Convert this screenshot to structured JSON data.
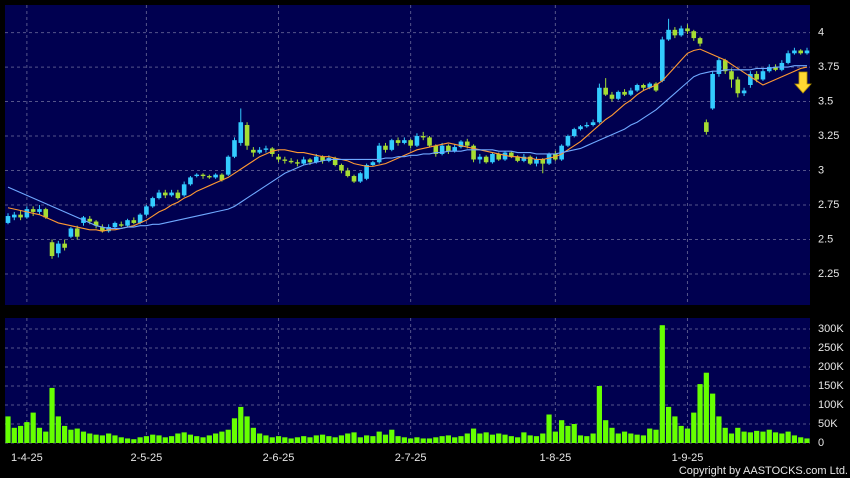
{
  "chart_data": {
    "type": "candlestick",
    "categories": [
      null,
      null,
      null,
      "1-4-25",
      null,
      null,
      null,
      null,
      null,
      null,
      null,
      null,
      null,
      null,
      null,
      null,
      null,
      null,
      null,
      null,
      null,
      null,
      "2-5-25",
      null,
      null,
      null,
      null,
      null,
      null,
      null,
      null,
      null,
      null,
      null,
      null,
      null,
      null,
      null,
      null,
      null,
      null,
      null,
      null,
      "2-6-25",
      null,
      null,
      null,
      null,
      null,
      null,
      null,
      null,
      null,
      null,
      null,
      null,
      null,
      null,
      null,
      null,
      null,
      null,
      null,
      null,
      "2-7-25",
      null,
      null,
      null,
      null,
      null,
      null,
      null,
      null,
      null,
      null,
      null,
      null,
      null,
      null,
      null,
      null,
      null,
      null,
      null,
      null,
      null,
      null,
      "1-8-25",
      null,
      null,
      null,
      null,
      null,
      null,
      null,
      null,
      null,
      null,
      null,
      null,
      null,
      null,
      null,
      null,
      null,
      null,
      null,
      null,
      "1-9-25",
      null,
      null,
      null,
      null,
      null,
      null,
      null,
      null,
      null,
      null,
      null,
      null,
      null,
      null,
      null,
      null,
      null,
      null,
      null
    ],
    "open": [
      2.62,
      2.66,
      2.68,
      2.66,
      2.72,
      2.7,
      2.72,
      2.48,
      2.4,
      2.47,
      2.52,
      2.58,
      2.62,
      2.65,
      2.63,
      2.59,
      2.56,
      2.59,
      2.61,
      2.6,
      2.64,
      2.62,
      2.68,
      2.74,
      2.8,
      2.84,
      2.82,
      2.84,
      2.82,
      2.9,
      2.96,
      2.97,
      2.96,
      2.95,
      2.97,
      2.97,
      3.1,
      3.2,
      3.33,
      3.15,
      3.13,
      3.15,
      3.16,
      3.1,
      3.08,
      3.07,
      3.06,
      3.05,
      3.08,
      3.06,
      3.1,
      3.07,
      3.09,
      3.04,
      3.0,
      2.96,
      2.92,
      2.94,
      3.04,
      3.06,
      3.18,
      3.15,
      3.22,
      3.2,
      3.22,
      3.18,
      3.25,
      3.24,
      3.18,
      3.12,
      3.18,
      3.14,
      3.17,
      3.21,
      3.18,
      3.08,
      3.1,
      3.06,
      3.12,
      3.08,
      3.13,
      3.1,
      3.07,
      3.1,
      3.05,
      3.08,
      3.05,
      3.12,
      3.08,
      3.18,
      3.25,
      3.3,
      3.32,
      3.33,
      3.35,
      3.6,
      3.55,
      3.52,
      3.57,
      3.55,
      3.58,
      3.62,
      3.6,
      3.63,
      3.65,
      3.95,
      4.02,
      3.98,
      4.03,
      4.01,
      3.96,
      3.35,
      3.45,
      3.7,
      3.8,
      3.72,
      3.66,
      3.56,
      3.62,
      3.7,
      3.66,
      3.72,
      3.75,
      3.73,
      3.78,
      3.85,
      3.87,
      3.85
    ],
    "high": [
      2.69,
      2.7,
      2.71,
      2.74,
      2.74,
      2.75,
      2.73,
      2.5,
      2.49,
      2.5,
      2.59,
      2.6,
      2.67,
      2.67,
      2.64,
      2.61,
      2.61,
      2.63,
      2.63,
      2.65,
      2.66,
      2.69,
      2.75,
      2.81,
      2.86,
      2.86,
      2.86,
      2.86,
      2.92,
      2.96,
      2.98,
      2.98,
      2.97,
      2.98,
      2.98,
      3.11,
      3.24,
      3.45,
      3.35,
      3.17,
      3.17,
      3.18,
      3.17,
      3.12,
      3.1,
      3.09,
      3.08,
      3.1,
      3.09,
      3.12,
      3.11,
      3.11,
      3.1,
      3.05,
      3.02,
      2.97,
      2.99,
      3.05,
      3.07,
      3.2,
      3.2,
      3.23,
      3.24,
      3.24,
      3.23,
      3.27,
      3.28,
      3.25,
      3.19,
      3.2,
      3.19,
      3.19,
      3.22,
      3.23,
      3.19,
      3.12,
      3.11,
      3.13,
      3.13,
      3.14,
      3.14,
      3.11,
      3.12,
      3.11,
      3.1,
      3.09,
      3.13,
      3.14,
      3.19,
      3.26,
      3.31,
      3.33,
      3.35,
      3.37,
      3.63,
      3.67,
      3.57,
      3.58,
      3.59,
      3.6,
      3.63,
      3.63,
      3.64,
      3.64,
      3.97,
      4.1,
      4.04,
      4.05,
      4.06,
      4.02,
      3.97,
      3.37,
      3.72,
      3.82,
      3.81,
      3.74,
      3.68,
      3.6,
      3.72,
      3.72,
      3.74,
      3.77,
      3.77,
      3.8,
      3.87,
      3.89,
      3.88,
      3.89
    ],
    "low": [
      2.61,
      2.64,
      2.64,
      2.65,
      2.67,
      2.68,
      2.65,
      2.36,
      2.37,
      2.42,
      2.51,
      2.5,
      2.6,
      2.61,
      2.58,
      2.55,
      2.55,
      2.58,
      2.59,
      2.59,
      2.61,
      2.61,
      2.67,
      2.73,
      2.79,
      2.8,
      2.81,
      2.79,
      2.81,
      2.89,
      2.95,
      2.94,
      2.94,
      2.94,
      2.92,
      2.96,
      3.09,
      3.18,
      3.15,
      3.1,
      3.12,
      3.13,
      3.1,
      3.06,
      3.05,
      3.05,
      3.03,
      3.04,
      3.04,
      3.05,
      3.05,
      3.06,
      3.03,
      2.98,
      2.95,
      2.91,
      2.91,
      2.93,
      3.03,
      3.05,
      3.13,
      3.14,
      3.18,
      3.19,
      3.16,
      3.17,
      3.22,
      3.17,
      3.1,
      3.11,
      3.12,
      3.13,
      3.16,
      3.16,
      3.06,
      3.05,
      3.05,
      3.05,
      3.07,
      3.07,
      3.09,
      3.06,
      3.06,
      3.04,
      3.03,
      2.98,
      3.04,
      3.07,
      3.07,
      3.17,
      3.24,
      3.29,
      3.31,
      3.32,
      3.34,
      3.54,
      3.5,
      3.51,
      3.54,
      3.54,
      3.57,
      3.58,
      3.59,
      3.57,
      3.64,
      3.94,
      3.96,
      3.97,
      3.99,
      3.94,
      3.9,
      3.26,
      3.44,
      3.68,
      3.7,
      3.6,
      3.53,
      3.54,
      3.6,
      3.64,
      3.65,
      3.71,
      3.72,
      3.72,
      3.77,
      3.84,
      3.84,
      3.84
    ],
    "close": [
      2.67,
      2.68,
      2.66,
      2.72,
      2.7,
      2.72,
      2.66,
      2.38,
      2.47,
      2.44,
      2.58,
      2.52,
      2.66,
      2.63,
      2.6,
      2.56,
      2.59,
      2.62,
      2.6,
      2.64,
      2.62,
      2.68,
      2.74,
      2.8,
      2.84,
      2.82,
      2.84,
      2.8,
      2.9,
      2.95,
      2.97,
      2.96,
      2.95,
      2.97,
      2.93,
      3.1,
      3.22,
      3.35,
      3.18,
      3.13,
      3.15,
      3.16,
      3.12,
      3.08,
      3.07,
      3.06,
      3.05,
      3.08,
      3.06,
      3.1,
      3.07,
      3.09,
      3.04,
      3.0,
      2.96,
      2.92,
      2.98,
      3.04,
      3.06,
      3.18,
      3.15,
      3.22,
      3.2,
      3.22,
      3.18,
      3.25,
      3.24,
      3.18,
      3.12,
      3.18,
      3.14,
      3.17,
      3.21,
      3.18,
      3.08,
      3.1,
      3.06,
      3.12,
      3.08,
      3.13,
      3.1,
      3.07,
      3.1,
      3.05,
      3.08,
      3.05,
      3.12,
      3.08,
      3.18,
      3.25,
      3.3,
      3.32,
      3.33,
      3.35,
      3.6,
      3.55,
      3.52,
      3.57,
      3.55,
      3.58,
      3.62,
      3.6,
      3.63,
      3.58,
      3.95,
      4.02,
      3.98,
      4.03,
      4.01,
      3.96,
      3.92,
      3.28,
      3.7,
      3.8,
      3.72,
      3.66,
      3.56,
      3.58,
      3.7,
      3.66,
      3.72,
      3.75,
      3.73,
      3.78,
      3.85,
      3.87,
      3.85,
      3.87
    ],
    "up_color": "#33ccff",
    "down_color": "#a6dd33",
    "series": [
      {
        "color": "#ff9933",
        "values": [
          2.73,
          2.72,
          2.71,
          2.7,
          2.69,
          2.68,
          2.66,
          2.64,
          2.62,
          2.61,
          2.6,
          2.59,
          2.58,
          2.57,
          2.57,
          2.56,
          2.57,
          2.57,
          2.58,
          2.59,
          2.6,
          2.62,
          2.64,
          2.67,
          2.7,
          2.72,
          2.75,
          2.77,
          2.8,
          2.82,
          2.85,
          2.87,
          2.89,
          2.91,
          2.93,
          2.95,
          2.98,
          3.01,
          3.04,
          3.07,
          3.1,
          3.12,
          3.14,
          3.15,
          3.15,
          3.14,
          3.13,
          3.13,
          3.12,
          3.11,
          3.1,
          3.1,
          3.09,
          3.08,
          3.07,
          3.05,
          3.04,
          3.03,
          3.03,
          3.04,
          3.05,
          3.07,
          3.09,
          3.11,
          3.13,
          3.15,
          3.16,
          3.17,
          3.18,
          3.19,
          3.2,
          3.19,
          3.18,
          3.17,
          3.16,
          3.15,
          3.14,
          3.13,
          3.12,
          3.11,
          3.1,
          3.1,
          3.09,
          3.09,
          3.08,
          3.08,
          3.09,
          3.1,
          3.12,
          3.15,
          3.18,
          3.21,
          3.25,
          3.29,
          3.33,
          3.37,
          3.4,
          3.44,
          3.48,
          3.51,
          3.55,
          3.58,
          3.6,
          3.62,
          3.65,
          3.7,
          3.75,
          3.8,
          3.85,
          3.87,
          3.88,
          3.86,
          3.84,
          3.82,
          3.8,
          3.77,
          3.74,
          3.71,
          3.68,
          3.65,
          3.62,
          3.64,
          3.66,
          3.68,
          3.7,
          3.72,
          3.74,
          3.75
        ]
      },
      {
        "color": "#6fa8ff",
        "values": [
          2.88,
          2.86,
          2.84,
          2.82,
          2.8,
          2.78,
          2.76,
          2.74,
          2.72,
          2.7,
          2.68,
          2.66,
          2.64,
          2.62,
          2.6,
          2.59,
          2.58,
          2.58,
          2.58,
          2.59,
          2.59,
          2.6,
          2.6,
          2.61,
          2.61,
          2.62,
          2.63,
          2.64,
          2.65,
          2.66,
          2.67,
          2.68,
          2.69,
          2.7,
          2.71,
          2.72,
          2.74,
          2.77,
          2.8,
          2.83,
          2.86,
          2.89,
          2.92,
          2.95,
          2.98,
          3.0,
          3.02,
          3.04,
          3.05,
          3.06,
          3.07,
          3.08,
          3.08,
          3.08,
          3.08,
          3.08,
          3.08,
          3.08,
          3.08,
          3.08,
          3.09,
          3.09,
          3.1,
          3.1,
          3.11,
          3.11,
          3.12,
          3.12,
          3.13,
          3.13,
          3.14,
          3.14,
          3.14,
          3.15,
          3.15,
          3.15,
          3.15,
          3.15,
          3.14,
          3.14,
          3.14,
          3.13,
          3.13,
          3.13,
          3.12,
          3.12,
          3.12,
          3.12,
          3.13,
          3.14,
          3.15,
          3.16,
          3.18,
          3.2,
          3.22,
          3.24,
          3.26,
          3.28,
          3.3,
          3.33,
          3.35,
          3.38,
          3.41,
          3.44,
          3.48,
          3.52,
          3.56,
          3.6,
          3.64,
          3.68,
          3.7,
          3.71,
          3.72,
          3.72,
          3.73,
          3.73,
          3.73,
          3.73,
          3.73,
          3.74,
          3.74,
          3.74,
          3.75,
          3.75,
          3.75,
          3.76,
          3.76,
          3.76
        ]
      }
    ],
    "ylim": [
      2.025,
      4.2
    ],
    "yticks": [
      2.25,
      2.5,
      2.75,
      3,
      3.25,
      3.5,
      3.75,
      4
    ],
    "grid": true,
    "volume": {
      "color": "#66ff00",
      "values": [
        70000,
        40000,
        45000,
        55000,
        80000,
        40000,
        30000,
        145000,
        70000,
        45000,
        35000,
        38000,
        30000,
        25000,
        22000,
        20000,
        25000,
        20000,
        15000,
        12000,
        10000,
        15000,
        18000,
        22000,
        20000,
        15000,
        18000,
        25000,
        28000,
        22000,
        18000,
        15000,
        20000,
        25000,
        30000,
        35000,
        65000,
        95000,
        70000,
        40000,
        25000,
        20000,
        15000,
        18000,
        15000,
        12000,
        15000,
        18000,
        15000,
        20000,
        22000,
        18000,
        15000,
        20000,
        25000,
        28000,
        15000,
        20000,
        18000,
        30000,
        22000,
        35000,
        18000,
        15000,
        12000,
        15000,
        12000,
        12000,
        15000,
        18000,
        20000,
        15000,
        18000,
        25000,
        38000,
        25000,
        28000,
        22000,
        25000,
        22000,
        18000,
        15000,
        28000,
        20000,
        18000,
        25000,
        75000,
        30000,
        60000,
        45000,
        50000,
        20000,
        18000,
        25000,
        150000,
        60000,
        40000,
        25000,
        30000,
        25000,
        22000,
        20000,
        38000,
        35000,
        310000,
        95000,
        70000,
        45000,
        38000,
        80000,
        155000,
        185000,
        130000,
        70000,
        40000,
        25000,
        40000,
        30000,
        28000,
        32000,
        30000,
        35000,
        28000,
        25000,
        30000,
        20000,
        15000,
        12000
      ],
      "ylim": [
        0,
        329000
      ],
      "yticks": [
        0,
        {
          "value": 50000,
          "label": "50K"
        },
        {
          "value": 100000,
          "label": "100K"
        },
        {
          "value": 150000,
          "label": "150K"
        },
        {
          "value": 200000,
          "label": "200K"
        },
        {
          "value": 250000,
          "label": "250K"
        },
        {
          "value": 300000,
          "label": "300K"
        }
      ]
    },
    "source": "Copyright by AASTOCKS.com Ltd."
  }
}
